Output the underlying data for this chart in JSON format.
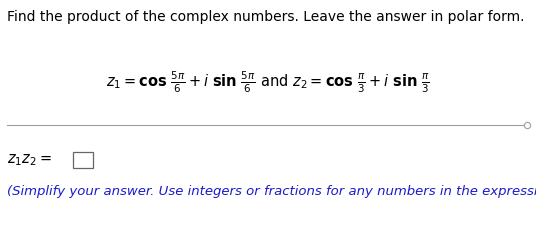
{
  "title": "Find the product of the complex numbers. Leave the answer in polar form.",
  "title_fontsize": 10.0,
  "title_color": "#000000",
  "bg_color": "#ffffff",
  "line_color": "#a0a0a0",
  "answer_label_color": "#000000",
  "simplify_text": "(Simplify your answer. Use integers or fractions for any numbers in the expression.)",
  "simplify_color": "#1a1acd",
  "eq_fontsize": 10.5,
  "fig_width": 5.36,
  "fig_height": 2.34,
  "dpi": 100
}
